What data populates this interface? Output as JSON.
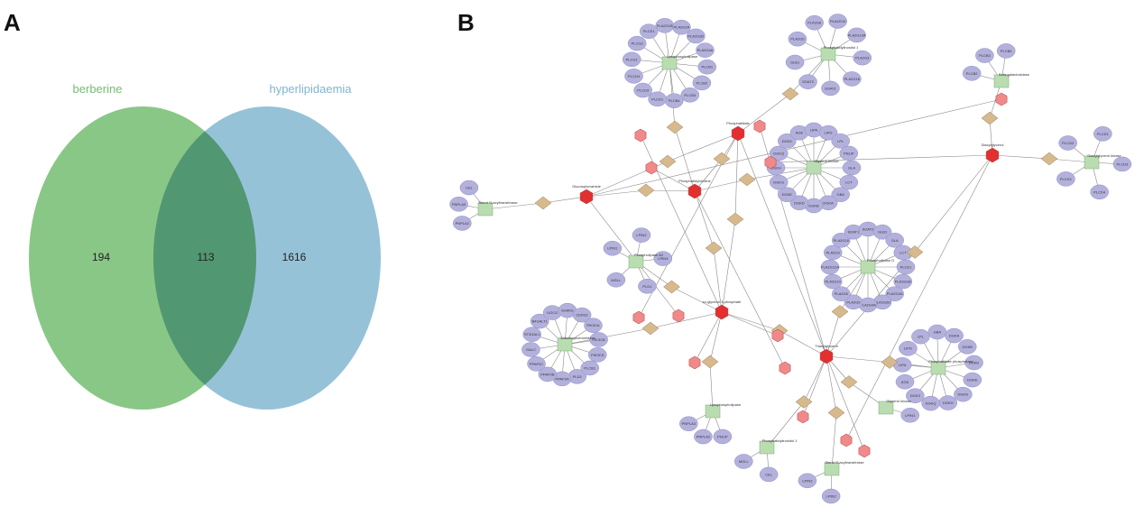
{
  "panels": {
    "a": "A",
    "b": "B"
  },
  "venn": {
    "set1": {
      "name": "berberine",
      "color": "#74bd72"
    },
    "set2": {
      "name": "hyperlipidaemia",
      "color": "#7fb4cf"
    },
    "only1": "194",
    "both": "113",
    "only2": "1616"
  },
  "network": {
    "colors": {
      "gene": "#b3b1dc",
      "compound": "#f08a8a",
      "compound_hub": "#e23030",
      "reaction": "#d6b98d",
      "pathway": "#b9ddb0",
      "edge": "#8a8a8a"
    },
    "pathway_labels": [
      "Lysophospholipase",
      "Phosphatidylinositol 1",
      "Glycerol kinase",
      "Sterol O-acyltransferase",
      "Phospholipase A2",
      "Galactosylceramidase",
      "Beta-galactosidase",
      "Diacylglycerol kinase",
      "Phospholipase D",
      "Phosphatidate phosphatase"
    ],
    "compound_labels": [
      "sn-glycerol 3-phosphate",
      "Phosphatidylcholine",
      "Triacylglycerol",
      "Diacylglycerol",
      "Phosphatidate",
      "Glucosylceramide",
      "Phosphatidylethanolamine",
      "Sterol ester",
      "Acylglycerol",
      "2-Acylglycerol"
    ],
    "gene_labels": [
      "PLCB1",
      "PLCB2",
      "PLCB3",
      "PLCB4",
      "PLCD1",
      "PLCD3",
      "PLCD4",
      "PLCG1",
      "PLCG2",
      "PLCE1",
      "PLA2G1B",
      "PLA2G2A",
      "PLA2G2D",
      "PLA2G4A",
      "PLA2G5",
      "PLA2G6",
      "PLA2G10",
      "PLA2G12A",
      "PLA2G3",
      "PLA2G16",
      "SOAT1",
      "SOAT2",
      "GLB1",
      "GLA",
      "LCT",
      "GBA",
      "DGKA",
      "DGKB",
      "DGKD",
      "DGKE",
      "DGKG",
      "DGKH",
      "DGKQ",
      "DGKZ",
      "AGK",
      "LIPA",
      "LIPG",
      "LPL",
      "PNLIP",
      "PNPLA2",
      "PNPLA3",
      "CEL",
      "MGLL",
      "LPIN1",
      "LPIN2",
      "LPIN3",
      "PLD1",
      "PLD2",
      "PPAP2A",
      "PPAP2B",
      "PPAP2C",
      "GALC",
      "ST3GAL1",
      "B4GALT1",
      "UGCG",
      "SGMS1",
      "CERS2",
      "PIK3CA",
      "PIK3CB",
      "PIK3CD"
    ]
  }
}
